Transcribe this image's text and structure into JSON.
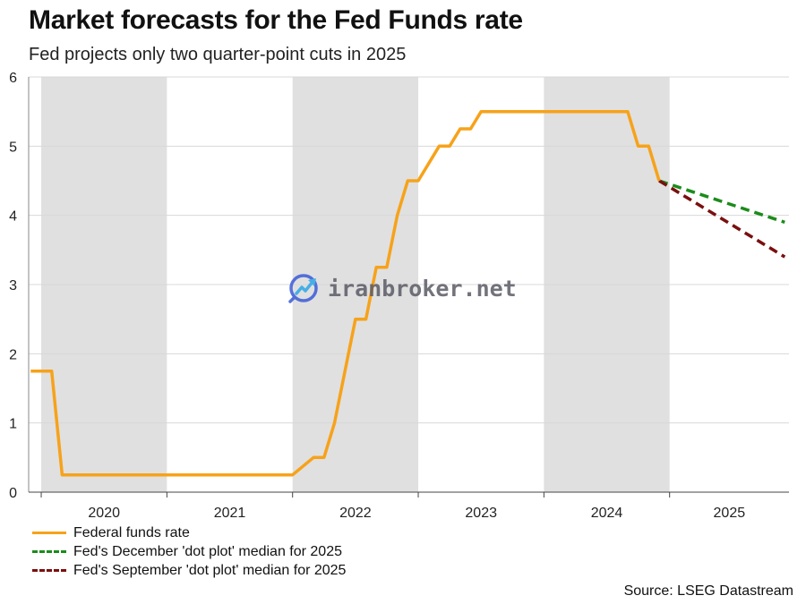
{
  "title": "Market forecasts for the Fed Funds rate",
  "subtitle": "Fed projects only two quarter-point cuts in 2025",
  "source": "Source: LSEG Datastream",
  "watermark": "iranbroker.net",
  "colors": {
    "funds": "#f7a21a",
    "december": "#1a8c1a",
    "september": "#7a0f0f",
    "band": "#e0e0e0",
    "grid": "#d8d8d8"
  },
  "chart_data": {
    "type": "line",
    "title": "Market forecasts for the Fed Funds rate",
    "subtitle": "Fed projects only two quarter-point cuts in 2025",
    "xlabel": "",
    "ylabel": "",
    "ylim": [
      0,
      6
    ],
    "xlim": [
      2019.9,
      2025.95
    ],
    "yticks": [
      0,
      1,
      2,
      3,
      4,
      5,
      6
    ],
    "xticks": [
      "2020",
      "2021",
      "2022",
      "2023",
      "2024",
      "2025"
    ],
    "shaded_years": [
      "2020",
      "2022",
      "2024"
    ],
    "grid": true,
    "legend_position": "bottom-left",
    "series": [
      {
        "name": "Federal funds rate",
        "color": "#f7a21a",
        "style": "solid",
        "x": [
          "2019-12",
          "2020-02",
          "2020-03",
          "2020-06",
          "2021-01",
          "2021-06",
          "2022-01",
          "2022-03",
          "2022-04",
          "2022-05",
          "2022-06",
          "2022-07",
          "2022-08",
          "2022-09",
          "2022-10",
          "2022-11",
          "2022-12",
          "2023-01",
          "2023-02",
          "2023-03",
          "2023-04",
          "2023-05",
          "2023-06",
          "2023-07",
          "2023-12",
          "2024-06",
          "2024-09",
          "2024-10",
          "2024-11",
          "2024-12"
        ],
        "y": [
          1.75,
          1.75,
          0.25,
          0.25,
          0.25,
          0.25,
          0.25,
          0.5,
          0.5,
          1.0,
          1.75,
          2.5,
          2.5,
          3.25,
          3.25,
          4.0,
          4.5,
          4.5,
          4.75,
          5.0,
          5.0,
          5.25,
          5.25,
          5.5,
          5.5,
          5.5,
          5.5,
          5.0,
          5.0,
          4.5
        ]
      },
      {
        "name": "Fed's December 'dot plot' median for 2025",
        "color": "#1a8c1a",
        "style": "dashed",
        "x": [
          "2024-12",
          "2025-12"
        ],
        "y": [
          4.5,
          3.9
        ]
      },
      {
        "name": "Fed's September 'dot plot' median for 2025",
        "color": "#7a0f0f",
        "style": "dashed",
        "x": [
          "2024-12",
          "2025-12"
        ],
        "y": [
          4.5,
          3.4
        ]
      }
    ]
  }
}
